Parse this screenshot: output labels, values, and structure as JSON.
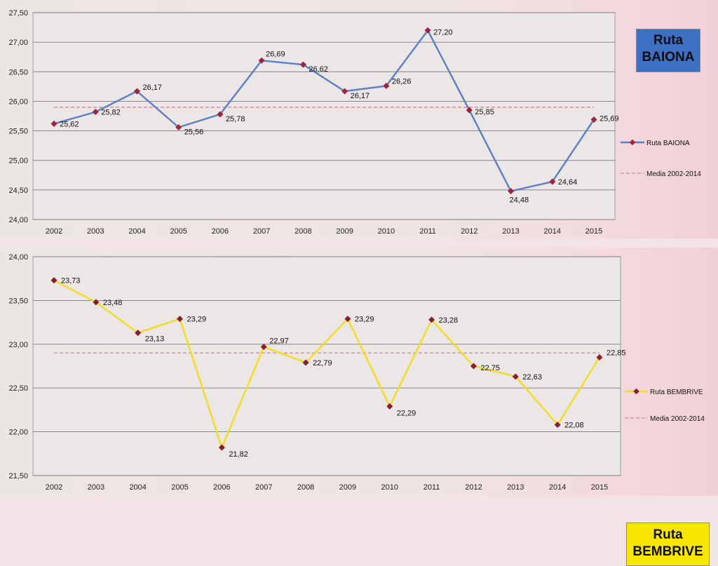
{
  "chart_data": [
    {
      "type": "line",
      "route_label": [
        "Ruta",
        "BAIONA"
      ],
      "route_box_color": "#3d6fc4",
      "route_text_color": "#0e0e0e",
      "categories": [
        "2002",
        "2003",
        "2004",
        "2005",
        "2006",
        "2007",
        "2008",
        "2009",
        "2010",
        "2011",
        "2012",
        "2013",
        "2014",
        "2015"
      ],
      "ytick_labels": [
        "24,00",
        "24,50",
        "25,00",
        "25,50",
        "26,00",
        "26,50",
        "27,00",
        "27,50"
      ],
      "ylim": [
        24.0,
        27.5
      ],
      "ystep": 0.5,
      "grid": true,
      "legend_position": "right",
      "series": [
        {
          "name": "Ruta BAIONA",
          "color": "#5b7fc6",
          "marker_color": "#a0243a",
          "values": [
            25.62,
            25.82,
            26.17,
            25.56,
            25.78,
            26.69,
            26.62,
            26.17,
            26.26,
            27.2,
            25.85,
            24.48,
            24.64,
            25.69
          ],
          "labels": [
            "25,62",
            "25,82",
            "26,17",
            "25,56",
            "25,78",
            "26,69",
            "26,62",
            "26,17",
            "26,26",
            "27,20",
            "25,85",
            "24,48",
            "24,64",
            "25,69"
          ]
        },
        {
          "name": "Media 2002-2014",
          "color": "#e3909c",
          "dashed": true,
          "value": 25.9
        }
      ]
    },
    {
      "type": "line",
      "route_label": [
        "Ruta",
        "BEMBRIVE"
      ],
      "route_box_color": "#f6e600",
      "route_text_color": "#0e0e0e",
      "categories": [
        "2002",
        "2003",
        "2004",
        "2005",
        "2006",
        "2007",
        "2008",
        "2009",
        "2010",
        "2011",
        "2012",
        "2013",
        "2014",
        "2015"
      ],
      "ytick_labels": [
        "21,50",
        "22,00",
        "22,50",
        "23,00",
        "23,50",
        "24,00"
      ],
      "ylim": [
        21.5,
        24.0
      ],
      "ystep": 0.5,
      "grid": true,
      "legend_position": "right",
      "series": [
        {
          "name": "Ruta BEMBRIVE",
          "color": "#f2dc1c",
          "marker_color": "#8a1e2e",
          "values": [
            23.73,
            23.48,
            23.13,
            23.29,
            21.82,
            22.97,
            22.79,
            23.29,
            22.29,
            23.28,
            22.75,
            22.63,
            22.08,
            22.85
          ],
          "labels": [
            "23,73",
            "23,48",
            "23,13",
            "23,29",
            "21,82",
            "22,97",
            "22,79",
            "23,29",
            "22,29",
            "23,28",
            "22,75",
            "22,63",
            "22,08",
            "22,85"
          ]
        },
        {
          "name": "Media 2002-2014",
          "color": "#e3909c",
          "dashed": true,
          "value": 22.9
        }
      ]
    }
  ]
}
